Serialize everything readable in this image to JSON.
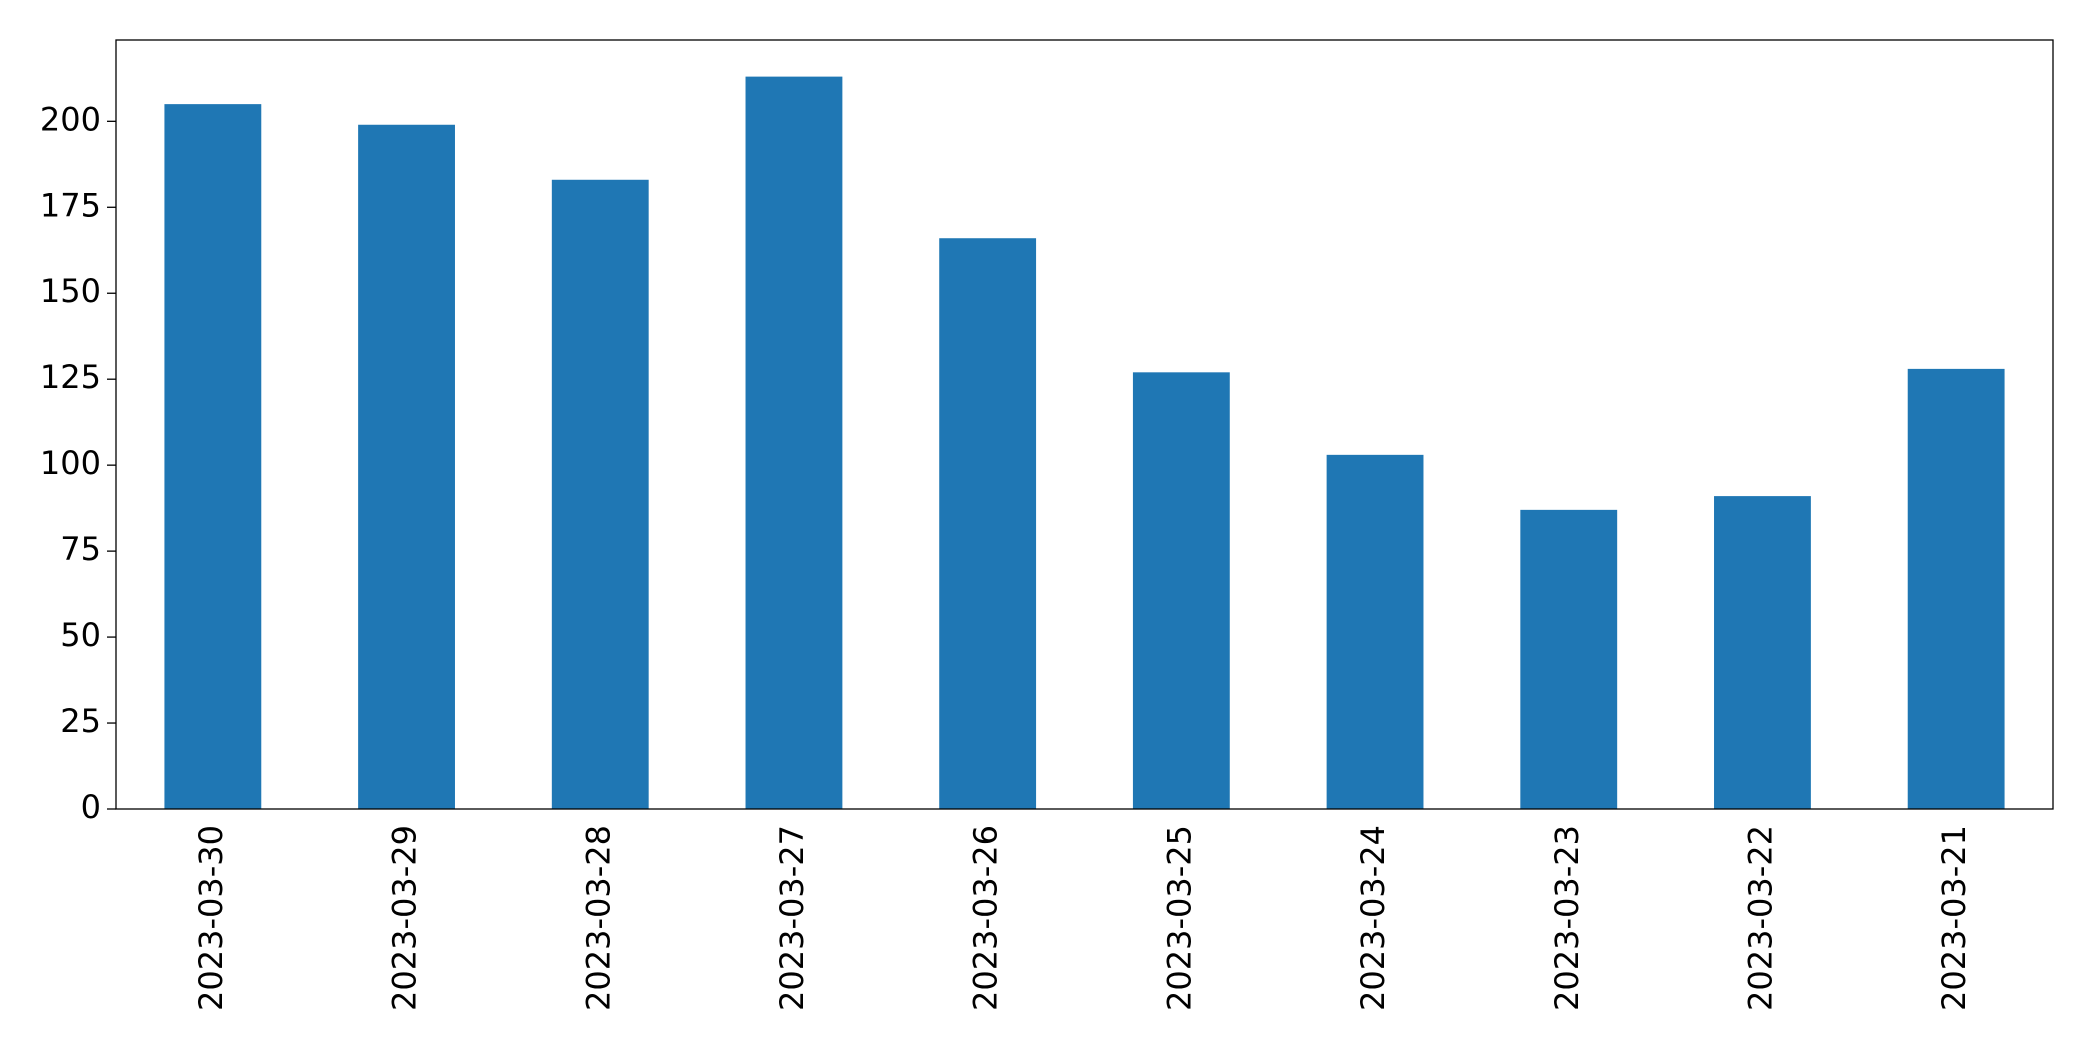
{
  "chart_data": {
    "type": "bar",
    "categories": [
      "2023-03-30",
      "2023-03-29",
      "2023-03-28",
      "2023-03-27",
      "2023-03-26",
      "2023-03-25",
      "2023-03-24",
      "2023-03-23",
      "2023-03-22",
      "2023-03-21"
    ],
    "values": [
      205,
      199,
      183,
      213,
      166,
      127,
      103,
      87,
      91,
      128
    ],
    "color": "#1f77b4",
    "ylim": [
      0,
      223.65
    ],
    "yticks": [
      0,
      25,
      50,
      75,
      100,
      125,
      150,
      175,
      200
    ],
    "grid": false
  }
}
